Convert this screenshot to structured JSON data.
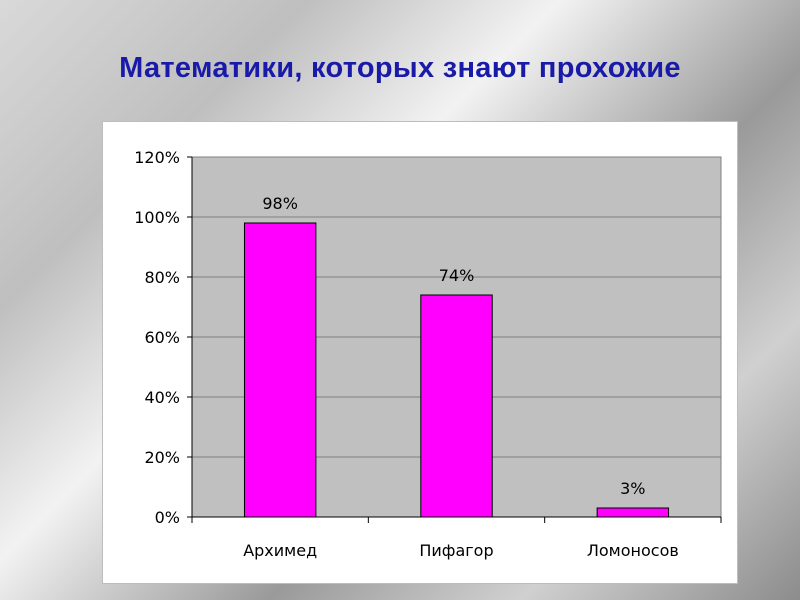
{
  "slide": {
    "title": "Математики, которых знают прохожие"
  },
  "chart_data": {
    "type": "bar",
    "categories": [
      "Архимед",
      "Пифагор",
      "Ломоносов"
    ],
    "values": [
      98,
      74,
      3
    ],
    "data_labels": [
      "98%",
      "74%",
      "3%"
    ],
    "ylim": [
      0,
      120
    ],
    "yticks": [
      0,
      20,
      40,
      60,
      80,
      100,
      120
    ],
    "ytick_labels": [
      "0%",
      "20%",
      "40%",
      "60%",
      "80%",
      "100%",
      "120%"
    ],
    "grid": true,
    "legend": "none",
    "colors": {
      "bar": "#ff00ff",
      "plot_area": "#c0c0c0",
      "gridline": "#7f7f7f"
    }
  }
}
